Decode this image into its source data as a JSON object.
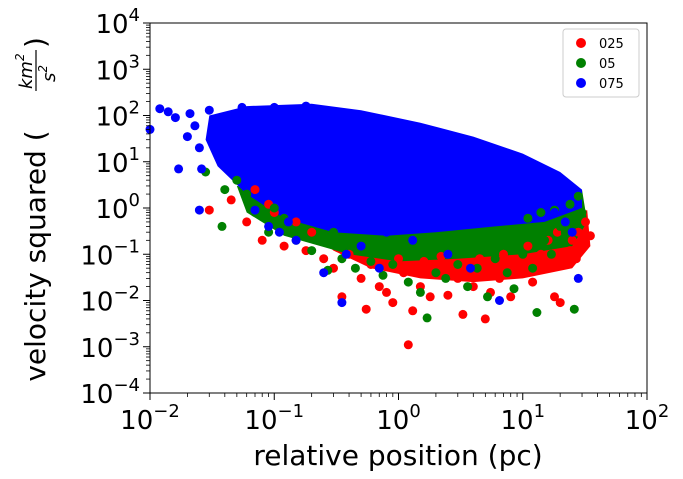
{
  "chart_data": {
    "type": "scatter",
    "title": "",
    "xlabel": "relative position (pc)",
    "ylabel": "velocity squared (",
    "ylabel_fraction": {
      "numerator": "km",
      "numerator_exp": "2",
      "denominator": "s",
      "denominator_exp": "2"
    },
    "ylabel_close": ")",
    "xscale": "log",
    "yscale": "log",
    "xlim": [
      0.01,
      100
    ],
    "ylim": [
      0.0001,
      10000
    ],
    "x_ticks": [
      {
        "value": 0.01,
        "base": "10",
        "exp": "−2"
      },
      {
        "value": 0.1,
        "base": "10",
        "exp": "−1"
      },
      {
        "value": 1,
        "base": "10",
        "exp": "0"
      },
      {
        "value": 10,
        "base": "10",
        "exp": "1"
      },
      {
        "value": 100,
        "base": "10",
        "exp": "2"
      }
    ],
    "y_ticks": [
      {
        "value": 0.0001,
        "base": "10",
        "exp": "−4"
      },
      {
        "value": 0.001,
        "base": "10",
        "exp": "−3"
      },
      {
        "value": 0.01,
        "base": "10",
        "exp": "−2"
      },
      {
        "value": 0.1,
        "base": "10",
        "exp": "−1"
      },
      {
        "value": 1,
        "base": "10",
        "exp": "0"
      },
      {
        "value": 10,
        "base": "10",
        "exp": "1"
      },
      {
        "value": 100,
        "base": "10",
        "exp": "2"
      },
      {
        "value": 1000,
        "base": "10",
        "exp": "3"
      },
      {
        "value": 10000,
        "base": "10",
        "exp": "4"
      }
    ],
    "legend_position": "top-right",
    "series": [
      {
        "name": "025",
        "color": "#ff0000",
        "points": [
          [
            0.03,
            0.9
          ],
          [
            0.045,
            1.5
          ],
          [
            0.06,
            0.5
          ],
          [
            0.08,
            0.2
          ],
          [
            0.12,
            0.15
          ],
          [
            0.18,
            0.12
          ],
          [
            0.25,
            0.08
          ],
          [
            0.3,
            0.05
          ],
          [
            0.35,
            0.012
          ],
          [
            0.5,
            0.03
          ],
          [
            0.55,
            0.0065
          ],
          [
            0.7,
            0.02
          ],
          [
            0.8,
            0.015
          ],
          [
            0.9,
            0.009
          ],
          [
            1.1,
            0.04
          ],
          [
            1.2,
            0.0011
          ],
          [
            1.3,
            0.006
          ],
          [
            1.5,
            0.02
          ],
          [
            1.8,
            0.012
          ],
          [
            2.0,
            0.05
          ],
          [
            2.5,
            0.013
          ],
          [
            3.0,
            0.03
          ],
          [
            3.3,
            0.005
          ],
          [
            4.0,
            0.02
          ],
          [
            5.0,
            0.004
          ],
          [
            5.5,
            0.015
          ],
          [
            6.5,
            0.03
          ],
          [
            8.0,
            0.012
          ],
          [
            10.0,
            0.04
          ],
          [
            12.0,
            0.025
          ],
          [
            15.0,
            0.06
          ],
          [
            18.0,
            0.012
          ],
          [
            20.0,
            0.009
          ],
          [
            22.0,
            0.1
          ],
          [
            25.0,
            0.2
          ],
          [
            28.0,
            0.3
          ],
          [
            30.0,
            0.15
          ],
          [
            32.0,
            0.5
          ],
          [
            35.0,
            0.25
          ],
          [
            0.4,
            0.1
          ],
          [
            0.6,
            0.06
          ],
          [
            1.0,
            0.08
          ],
          [
            1.6,
            0.07
          ],
          [
            2.2,
            0.09
          ],
          [
            3.5,
            0.06
          ],
          [
            4.5,
            0.08
          ],
          [
            6.0,
            0.05
          ],
          [
            7.0,
            0.1
          ],
          [
            9.0,
            0.07
          ],
          [
            11.0,
            0.15
          ],
          [
            14.0,
            0.1
          ],
          [
            16.0,
            0.2
          ],
          [
            19.0,
            0.3
          ],
          [
            24.0,
            0.12
          ],
          [
            27.0,
            0.08
          ],
          [
            0.2,
            0.3
          ],
          [
            0.15,
            0.5
          ],
          [
            0.1,
            0.8
          ],
          [
            0.09,
            1.2
          ],
          [
            0.07,
            2.5
          ]
        ]
      },
      {
        "name": "05",
        "color": "#008000",
        "points": [
          [
            0.028,
            6.0
          ],
          [
            0.04,
            2.5
          ],
          [
            0.07,
            0.8
          ],
          [
            0.09,
            0.3
          ],
          [
            0.15,
            0.2
          ],
          [
            0.2,
            0.12
          ],
          [
            0.27,
            0.045
          ],
          [
            0.35,
            0.08
          ],
          [
            0.45,
            0.05
          ],
          [
            0.6,
            0.07
          ],
          [
            0.75,
            0.035
          ],
          [
            0.9,
            0.06
          ],
          [
            1.2,
            0.025
          ],
          [
            1.5,
            0.015
          ],
          [
            1.7,
            0.0042
          ],
          [
            2.0,
            0.04
          ],
          [
            2.4,
            0.03
          ],
          [
            3.0,
            0.06
          ],
          [
            3.6,
            0.02
          ],
          [
            4.3,
            0.05
          ],
          [
            5.2,
            0.012
          ],
          [
            6.0,
            0.08
          ],
          [
            7.5,
            0.04
          ],
          [
            8.5,
            0.018
          ],
          [
            10.0,
            0.1
          ],
          [
            12.0,
            0.05
          ],
          [
            13.0,
            0.0055
          ],
          [
            15.0,
            0.2
          ],
          [
            17.0,
            0.1
          ],
          [
            20.0,
            0.4
          ],
          [
            22.0,
            0.3
          ],
          [
            24.0,
            1.2
          ],
          [
            26.0,
            0.0065
          ],
          [
            28.0,
            1.8
          ],
          [
            30.0,
            0.8
          ],
          [
            26.0,
            0.5
          ],
          [
            18.0,
            0.9
          ],
          [
            9.0,
            0.25
          ],
          [
            5.0,
            0.15
          ],
          [
            2.8,
            0.12
          ],
          [
            1.4,
            0.1
          ],
          [
            0.8,
            0.15
          ],
          [
            0.5,
            0.2
          ],
          [
            0.3,
            0.3
          ],
          [
            0.12,
            0.6
          ],
          [
            0.1,
            1.0
          ],
          [
            0.06,
            2.0
          ],
          [
            0.05,
            4.0
          ],
          [
            11.0,
            0.6
          ],
          [
            14.0,
            0.8
          ],
          [
            0.038,
            0.4
          ]
        ]
      },
      {
        "name": "075",
        "color": "#0000ff",
        "points": [
          [
            0.01,
            50
          ],
          [
            0.012,
            140
          ],
          [
            0.014,
            120
          ],
          [
            0.016,
            90
          ],
          [
            0.017,
            7.0
          ],
          [
            0.02,
            35
          ],
          [
            0.021,
            110
          ],
          [
            0.023,
            60
          ],
          [
            0.025,
            20
          ],
          [
            0.026,
            7.0
          ],
          [
            0.03,
            130
          ],
          [
            0.035,
            80
          ],
          [
            0.04,
            40
          ],
          [
            0.045,
            25
          ],
          [
            0.05,
            12
          ],
          [
            0.055,
            150
          ],
          [
            0.06,
            4
          ],
          [
            0.065,
            90
          ],
          [
            0.07,
            0.9
          ],
          [
            0.08,
            60
          ],
          [
            0.09,
            0.4
          ],
          [
            0.1,
            150
          ],
          [
            0.11,
            0.3
          ],
          [
            0.13,
            0.5
          ],
          [
            0.15,
            0.2
          ],
          [
            0.18,
            160
          ],
          [
            0.2,
            120
          ],
          [
            0.22,
            90
          ],
          [
            0.25,
            0.04
          ],
          [
            0.3,
            100
          ],
          [
            0.35,
            0.009
          ],
          [
            0.38,
            0.1
          ],
          [
            0.45,
            80
          ],
          [
            0.5,
            0.15
          ],
          [
            0.6,
            70
          ],
          [
            0.7,
            0.05
          ],
          [
            0.8,
            0.3
          ],
          [
            1.0,
            50
          ],
          [
            1.3,
            0.2
          ],
          [
            1.5,
            35
          ],
          [
            2.0,
            25
          ],
          [
            2.5,
            0.1
          ],
          [
            3.0,
            18
          ],
          [
            3.8,
            0.05
          ],
          [
            4.5,
            12
          ],
          [
            6.0,
            8
          ],
          [
            6.5,
            0.01
          ],
          [
            8.0,
            5
          ],
          [
            10.0,
            3.5
          ],
          [
            12.0,
            2.5
          ],
          [
            15.0,
            1.5
          ],
          [
            18.0,
            0.8
          ],
          [
            22.0,
            0.5
          ],
          [
            25.0,
            0.3
          ],
          [
            28.0,
            0.03
          ],
          [
            0.025,
            0.9
          ]
        ]
      }
    ]
  }
}
